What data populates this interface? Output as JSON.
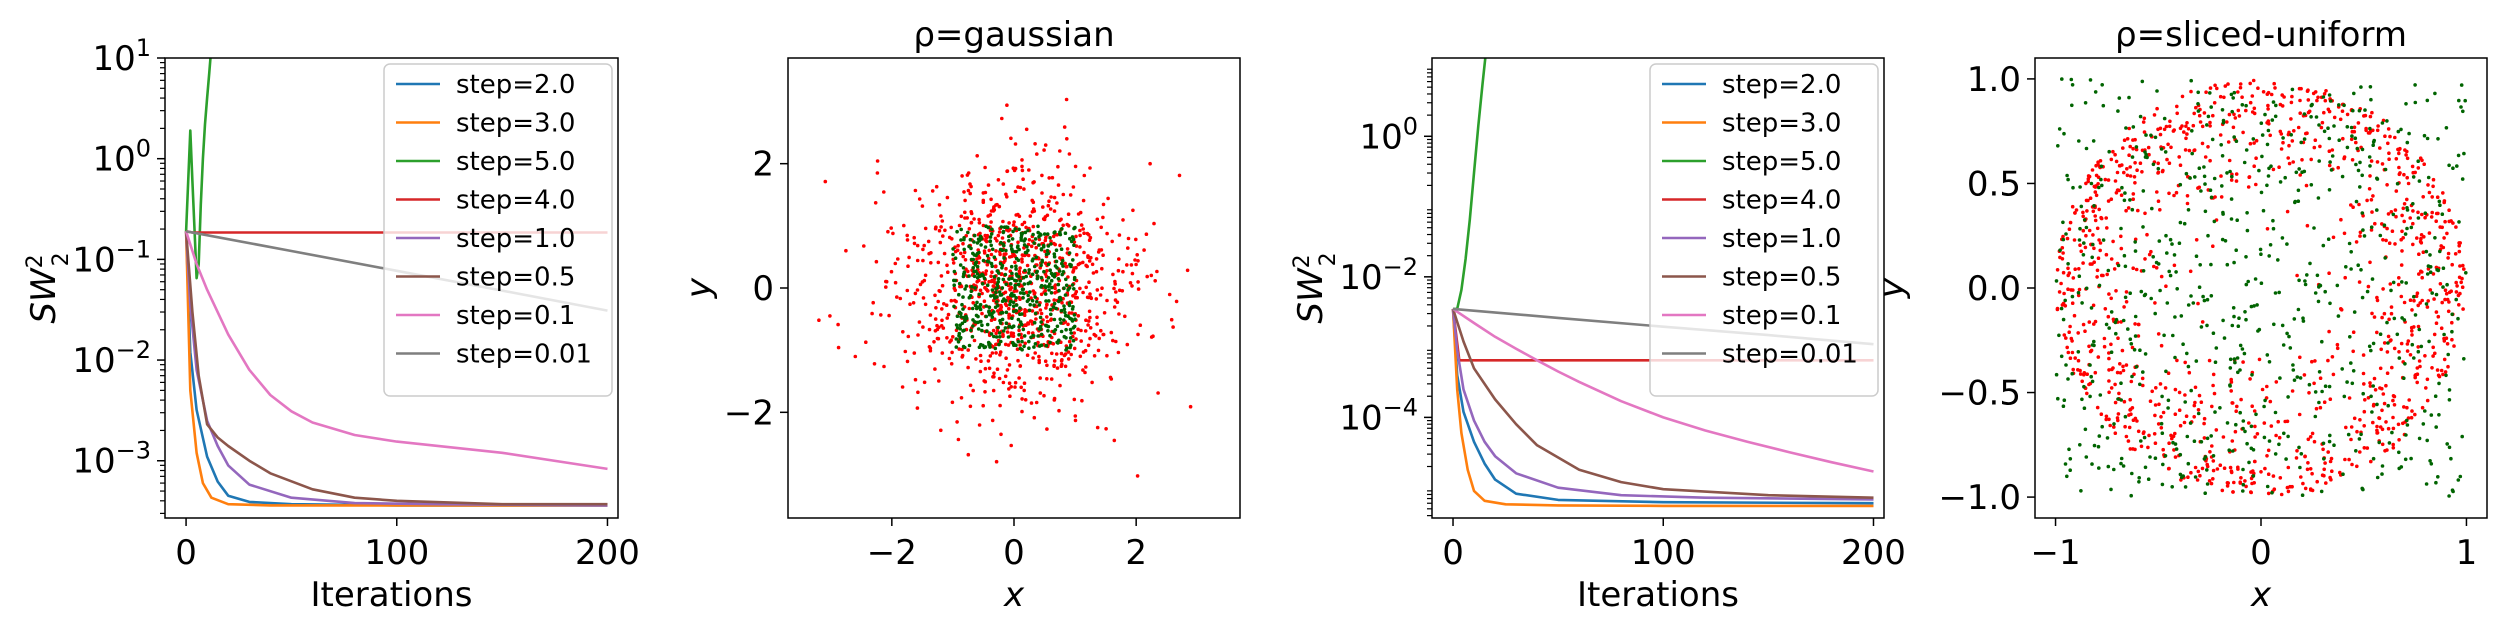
{
  "figure": {
    "panels": [
      "Loss curves (Gaussian target)",
      "Gaussian scatter",
      "Loss curves (sliced-uniform target)",
      "Sliced-uniform scatter"
    ]
  },
  "colors": {
    "step_2": "#1f77b4",
    "step_3": "#ff7f0e",
    "step_5": "#2ca02c",
    "step_4": "#d62728",
    "step_1": "#9467bd",
    "step_05": "#8c564b",
    "step_01": "#e377c2",
    "step_001": "#7f7f7f",
    "target_points": "#ff0000",
    "particles": "#006400"
  },
  "chart_data": [
    {
      "type": "line",
      "xlabel": "Iterations",
      "ylabel": "SW₂²",
      "yscale": "log",
      "xlim": [
        -10,
        205
      ],
      "ylim": [
        0.00027,
        10
      ],
      "xticks": [
        "0",
        "100",
        "200"
      ],
      "yticks": [
        {
          "base": "10",
          "exp": "1"
        },
        {
          "base": "10",
          "exp": "0"
        },
        {
          "base": "10",
          "exp": "−1"
        },
        {
          "base": "10",
          "exp": "−2"
        },
        {
          "base": "10",
          "exp": "−3"
        }
      ],
      "legend_position": "top-right",
      "series": [
        {
          "name": "step=2.0",
          "color": "#1f77b4",
          "x": [
            0,
            2,
            5,
            10,
            15,
            20,
            30,
            50,
            100,
            200
          ],
          "y": [
            0.19,
            0.012,
            0.0032,
            0.0011,
            0.00062,
            0.00045,
            0.00039,
            0.00037,
            0.00036,
            0.00036
          ]
        },
        {
          "name": "step=3.0",
          "color": "#ff7f0e",
          "x": [
            0,
            2,
            5,
            8,
            12,
            20,
            40,
            100,
            200
          ],
          "y": [
            0.19,
            0.005,
            0.0012,
            0.0006,
            0.00043,
            0.00037,
            0.00036,
            0.00036,
            0.00036
          ]
        },
        {
          "name": "step=5.0",
          "color": "#2ca02c",
          "x": [
            0,
            1,
            2,
            3,
            4,
            5,
            6,
            7,
            8,
            9,
            10,
            11,
            12
          ],
          "y": [
            0.19,
            0.6,
            1.9,
            0.6,
            0.2,
            0.065,
            0.09,
            0.35,
            1.0,
            2.2,
            4.0,
            7.0,
            13.0
          ]
        },
        {
          "name": "step=4.0",
          "color": "#d62728",
          "x": [
            0,
            3,
            50,
            100,
            200
          ],
          "y": [
            0.19,
            0.185,
            0.185,
            0.185,
            0.185
          ]
        },
        {
          "name": "step=1.0",
          "color": "#9467bd",
          "x": [
            0,
            2,
            5,
            10,
            15,
            20,
            30,
            50,
            80,
            120,
            200
          ],
          "y": [
            0.19,
            0.035,
            0.008,
            0.0025,
            0.0014,
            0.0009,
            0.00058,
            0.00043,
            0.00038,
            0.00037,
            0.00036
          ]
        },
        {
          "name": "step=0.5",
          "color": "#8c564b",
          "x": [
            0,
            3,
            6,
            10,
            15,
            20,
            30,
            40,
            60,
            80,
            100,
            150,
            200
          ],
          "y": [
            0.19,
            0.03,
            0.007,
            0.0023,
            0.0017,
            0.0014,
            0.001,
            0.00075,
            0.00052,
            0.00043,
            0.0004,
            0.00037,
            0.00037
          ]
        },
        {
          "name": "step=0.1",
          "color": "#e377c2",
          "x": [
            0,
            5,
            10,
            20,
            30,
            40,
            50,
            60,
            80,
            100,
            150,
            200
          ],
          "y": [
            0.19,
            0.09,
            0.05,
            0.018,
            0.008,
            0.0045,
            0.0031,
            0.0024,
            0.0018,
            0.00155,
            0.0012,
            0.00083
          ]
        },
        {
          "name": "step=0.01",
          "color": "#7f7f7f",
          "x": [
            0,
            50,
            100,
            150,
            200
          ],
          "y": [
            0.19,
            0.121,
            0.077,
            0.049,
            0.031
          ]
        }
      ]
    },
    {
      "type": "scatter",
      "title": "ρ=gaussian",
      "xlabel": "x",
      "ylabel": "y",
      "xlim": [
        -3.7,
        3.7
      ],
      "ylim": [
        -3.7,
        3.7
      ],
      "xticks": [
        "−2",
        "0",
        "2"
      ],
      "yticks": [
        "−2",
        "0",
        "2"
      ],
      "series": [
        {
          "role": "target",
          "color": "#ff0000",
          "distribution": "gaussian",
          "mean": [
            0,
            0
          ],
          "std": 1,
          "count": 1000
        },
        {
          "role": "particles",
          "color": "#006400",
          "distribution": "uniform-square",
          "extent": [
            -1,
            1
          ],
          "count": 500
        }
      ]
    },
    {
      "type": "line",
      "xlabel": "Iterations",
      "ylabel": "SW₂²",
      "yscale": "log",
      "xlim": [
        -10,
        205
      ],
      "ylim": [
        3.7e-06,
        13
      ],
      "xticks": [
        "0",
        "100",
        "200"
      ],
      "yticks": [
        {
          "base": "10",
          "exp": "0"
        },
        {
          "base": "10",
          "exp": "−2"
        },
        {
          "base": "10",
          "exp": "−4"
        }
      ],
      "legend_position": "top-right",
      "series": [
        {
          "name": "step=2.0",
          "color": "#1f77b4",
          "x": [
            0,
            2,
            5,
            10,
            15,
            20,
            30,
            50,
            100,
            200
          ],
          "y": [
            0.0035,
            0.0004,
            0.00012,
            4.5e-05,
            2.2e-05,
            1.3e-05,
            8.2e-06,
            6.7e-06,
            6.2e-06,
            6e-06
          ]
        },
        {
          "name": "step=3.0",
          "color": "#ff7f0e",
          "x": [
            0,
            2,
            4,
            7,
            10,
            15,
            25,
            50,
            100,
            200
          ],
          "y": [
            0.0035,
            0.00025,
            6e-05,
            1.8e-05,
            9e-06,
            6.5e-06,
            5.8e-06,
            5.6e-06,
            5.5e-06,
            5.5e-06
          ]
        },
        {
          "name": "step=5.0",
          "color": "#2ca02c",
          "x": [
            0,
            2,
            4,
            6,
            8,
            10,
            12,
            14,
            16
          ],
          "y": [
            0.0035,
            0.0035,
            0.0065,
            0.018,
            0.065,
            0.3,
            1.4,
            5.5,
            20
          ]
        },
        {
          "name": "step=4.0",
          "color": "#d62728",
          "x": [
            0,
            3,
            50,
            100,
            200
          ],
          "y": [
            0.0035,
            0.00065,
            0.00065,
            0.00065,
            0.00065
          ]
        },
        {
          "name": "step=1.0",
          "color": "#9467bd",
          "x": [
            0,
            2,
            5,
            10,
            15,
            20,
            30,
            50,
            80,
            120,
            200
          ],
          "y": [
            0.0035,
            0.0009,
            0.00025,
            9e-05,
            4.5e-05,
            2.8e-05,
            1.6e-05,
            1e-05,
            7.8e-06,
            7.2e-06,
            6.8e-06
          ]
        },
        {
          "name": "step=0.5",
          "color": "#8c564b",
          "x": [
            0,
            5,
            10,
            20,
            30,
            40,
            60,
            80,
            100,
            150,
            200
          ],
          "y": [
            0.0035,
            0.0012,
            0.0005,
            0.00018,
            8e-05,
            4e-05,
            1.8e-05,
            1.2e-05,
            9.5e-06,
            7.8e-06,
            7.2e-06
          ]
        },
        {
          "name": "step=0.1",
          "color": "#e377c2",
          "x": [
            0,
            10,
            20,
            30,
            40,
            50,
            60,
            80,
            100,
            120,
            140,
            160,
            180,
            200
          ],
          "y": [
            0.0035,
            0.0022,
            0.0014,
            0.00095,
            0.00065,
            0.00045,
            0.00032,
            0.00017,
            0.0001,
            6.5e-05,
            4.5e-05,
            3.2e-05,
            2.3e-05,
            1.7e-05
          ]
        },
        {
          "name": "step=0.01",
          "color": "#7f7f7f",
          "x": [
            0,
            50,
            100,
            150,
            200
          ],
          "y": [
            0.0035,
            0.0026,
            0.00195,
            0.00148,
            0.0011
          ]
        }
      ]
    },
    {
      "type": "scatter",
      "title": "ρ=sliced-uniform",
      "xlabel": "x",
      "ylabel": "y",
      "xlim": [
        -1.1,
        1.1
      ],
      "ylim": [
        -1.1,
        1.1
      ],
      "xticks": [
        "−1",
        "0",
        "1"
      ],
      "yticks": [
        "1.0",
        "0.5",
        "0.0",
        "−0.5",
        "−1.0"
      ],
      "series": [
        {
          "role": "target",
          "color": "#ff0000",
          "distribution": "sliced-uniform-disk",
          "radius": 1,
          "count": 1100
        },
        {
          "role": "particles",
          "color": "#006400",
          "distribution": "uniform-square",
          "extent": [
            -1,
            1
          ],
          "count": 700
        }
      ]
    }
  ]
}
